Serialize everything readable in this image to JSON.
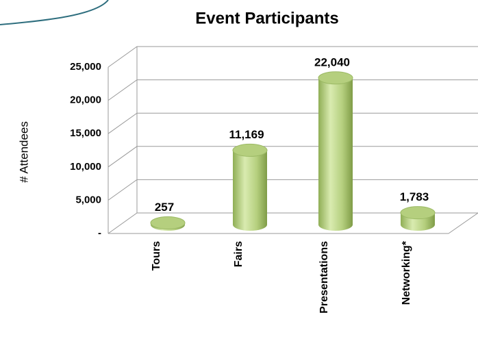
{
  "chart_data": {
    "type": "bar",
    "title": "Event Participants",
    "y_label": "# Attendees",
    "categories": [
      "Tours",
      "Fairs",
      "Presentations",
      "Networking*"
    ],
    "values": [
      257,
      11169,
      22040,
      1783
    ],
    "value_labels": [
      "257",
      "11,169",
      "22,040",
      "1,783"
    ],
    "color": "#b5cf7e",
    "ylim": [
      0,
      25000
    ],
    "yticks": [
      {
        "value": 0,
        "label": "-"
      },
      {
        "value": 5000,
        "label": "5,000"
      },
      {
        "value": 10000,
        "label": "10,000"
      },
      {
        "value": 15000,
        "label": "15,000"
      },
      {
        "value": 20000,
        "label": "20,000"
      },
      {
        "value": 25000,
        "label": "25,000"
      }
    ],
    "grid": true
  }
}
